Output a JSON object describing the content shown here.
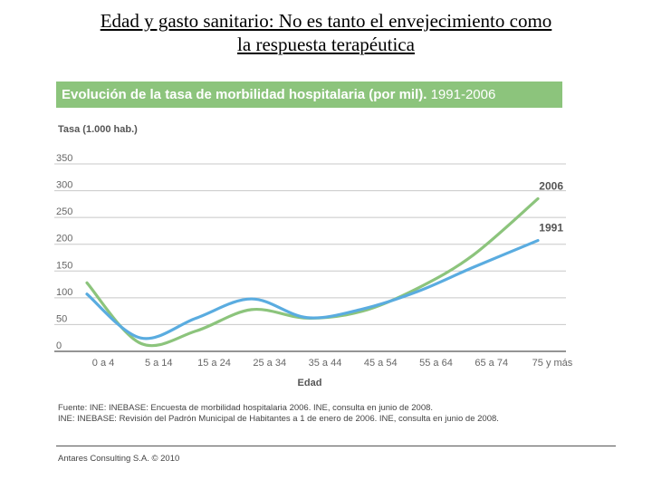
{
  "slide": {
    "title_line1": "Edad y gasto sanitario: No es tanto el envejecimiento como",
    "title_line2": "la respuesta terapéutica"
  },
  "chart_header": {
    "title": "Evolución de la tasa de morbilidad hospitalaria (por mil).",
    "years": "1991-2006",
    "background": "#8cc47c"
  },
  "chart_data": {
    "type": "line",
    "title": "Evolución de la tasa de morbilidad hospitalaria (por mil). 1991-2006",
    "ylabel": "Tasa (1.000 hab.)",
    "xlabel": "Edad",
    "categories": [
      "0 a 4",
      "5 a 14",
      "15 a 24",
      "25 a 34",
      "35 a 44",
      "45 a 54",
      "55 a 64",
      "65 a 74",
      "75 y más"
    ],
    "yticks": [
      0,
      50,
      100,
      150,
      200,
      250,
      300,
      350
    ],
    "ylim": [
      0,
      350
    ],
    "grid": true,
    "series": [
      {
        "name": "2006",
        "color": "#8cc47c",
        "values": [
          128,
          15,
          38,
          78,
          62,
          75,
          118,
          180,
          285
        ]
      },
      {
        "name": "1991",
        "color": "#5aace0",
        "values": [
          107,
          25,
          62,
          98,
          63,
          79,
          112,
          157,
          207
        ]
      }
    ]
  },
  "footer": {
    "source_line1": "Fuente: INE: INEBASE: Encuesta de morbilidad hospitalaria 2006. INE, consulta en junio de 2008.",
    "source_line2": "INE: INEBASE: Revisión del Padrón Municipal de Habitantes a 1 de enero de 2006. INE, consulta en junio de 2008.",
    "credit": "Antares Consulting S.A. © 2010"
  }
}
